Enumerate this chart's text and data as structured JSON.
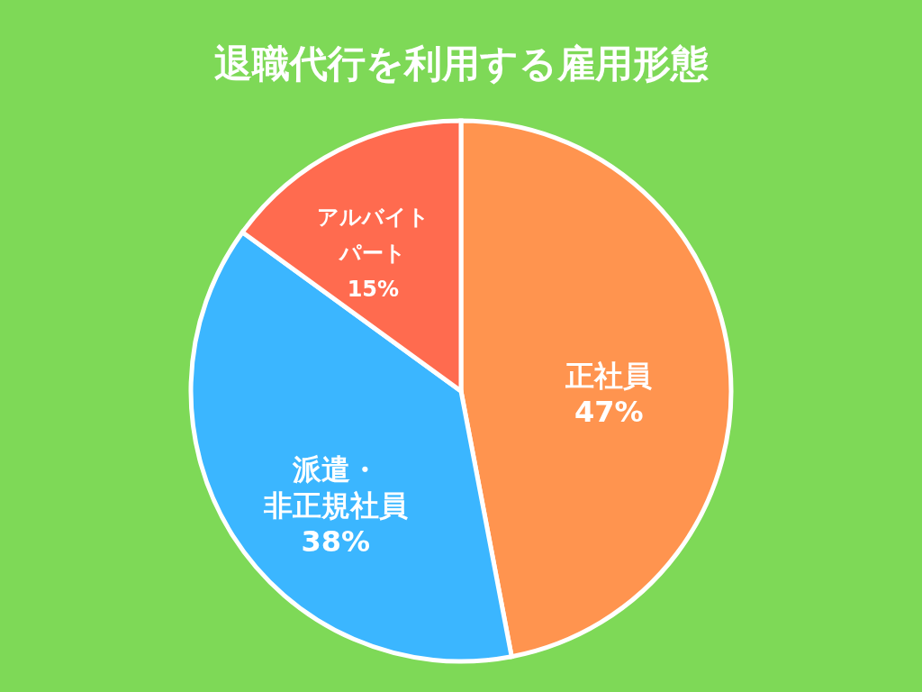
{
  "chart_data": {
    "type": "pie",
    "title": "退職代行を利用する雇用形態",
    "categories": [
      "正社員",
      "派遣・非正規社員",
      "アルバイトパート"
    ],
    "values": [
      47,
      38,
      15
    ],
    "colors": [
      "#ff944f",
      "#3bb6ff",
      "#ff6b4f"
    ],
    "value_labels": [
      "47%",
      "38%",
      "15%"
    ]
  }
}
